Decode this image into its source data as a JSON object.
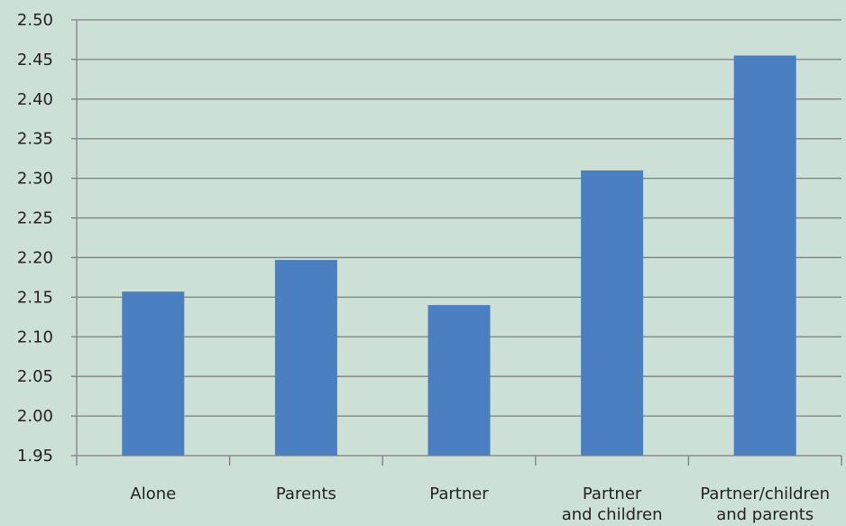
{
  "chart_data": {
    "type": "bar",
    "title": "",
    "xlabel": "",
    "ylabel": "",
    "categories": [
      [
        "Alone"
      ],
      [
        "Parents"
      ],
      [
        "Partner"
      ],
      [
        "Partner",
        "and children"
      ],
      [
        "Partner/children",
        "and parents"
      ]
    ],
    "values": [
      2.157,
      2.197,
      2.14,
      2.31,
      2.455
    ],
    "ylim": [
      1.95,
      2.5
    ],
    "yticks": [
      "1.95",
      "2.00",
      "2.05",
      "2.10",
      "2.15",
      "2.20",
      "2.25",
      "2.30",
      "2.35",
      "2.40",
      "2.45",
      "2.50"
    ],
    "grid": true,
    "legend": "none",
    "colors": {
      "background": "#cde0d5",
      "bar": "#4a7fc1",
      "grid": "#7f7f7f",
      "axis": "#7f7f7f",
      "text": "#222222"
    }
  }
}
